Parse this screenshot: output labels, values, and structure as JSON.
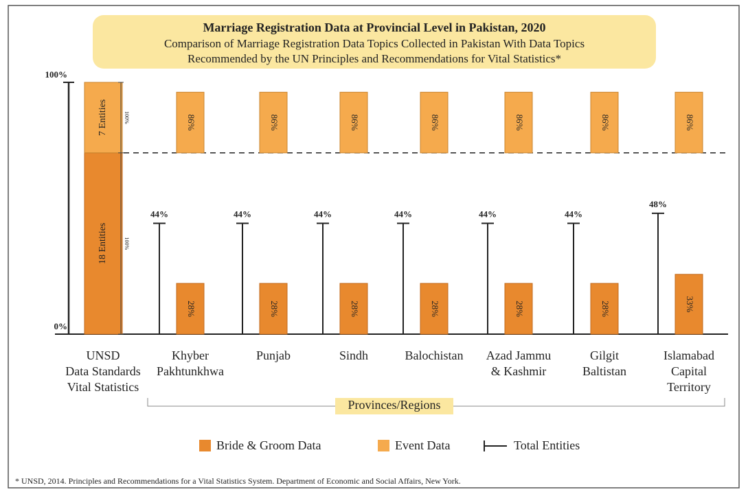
{
  "chart_data": {
    "type": "bar",
    "title": "Marriage Registration Data at Provincial Level in Pakistan, 2020",
    "subtitle": [
      "Comparison of Marriage Registration Data Topics Collected in Pakistan With Data Topics",
      "Recommended by the UN Principles and Recommendations for Vital Statistics*"
    ],
    "ylim": [
      0,
      100
    ],
    "yticks": [
      {
        "value": 0,
        "label": "0%"
      },
      {
        "value": 100,
        "label": "100%"
      }
    ],
    "reference": {
      "label": [
        "UNSD",
        "Data Standards",
        "Vital Statistics"
      ],
      "values": [
        18,
        7
      ],
      "value_labels": [
        "18 Entities",
        "7 Entities"
      ],
      "scale_labels": [
        "100%",
        "100%"
      ]
    },
    "categories": [
      [
        "Khyber",
        "Pakhtunkhwa"
      ],
      [
        "Punjab"
      ],
      [
        "Sindh"
      ],
      [
        "Balochistan"
      ],
      [
        "Azad Jammu",
        "& Kashmir"
      ],
      [
        "Gilgit",
        "Baltistan"
      ],
      [
        "Islamabad",
        "Capital",
        "Territory"
      ]
    ],
    "group_label": "Provinces/Regions",
    "series": [
      {
        "name": "Bride & Groom Data",
        "color": "#e8892e",
        "values": [
          28,
          28,
          28,
          28,
          28,
          28,
          33
        ],
        "value_labels": [
          "28%",
          "28%",
          "28%",
          "28%",
          "28%",
          "28%",
          "33%"
        ]
      },
      {
        "name": "Event Data",
        "color": "#f5aa4d",
        "values": [
          86,
          86,
          86,
          86,
          86,
          86,
          86
        ],
        "value_labels": [
          "86%",
          "86%",
          "86%",
          "86%",
          "86%",
          "86%",
          "86%"
        ]
      },
      {
        "name": "Total Entities",
        "color": "#222222",
        "values": [
          44,
          44,
          44,
          44,
          44,
          44,
          48
        ],
        "value_labels": [
          "44%",
          "44%",
          "44%",
          "44%",
          "44%",
          "44%",
          "48%"
        ]
      }
    ],
    "footnote": "* UNSD, 2014. Principles and Recommendations for a Vital Statistics System. Department of Economic and Social Affairs, New York."
  }
}
